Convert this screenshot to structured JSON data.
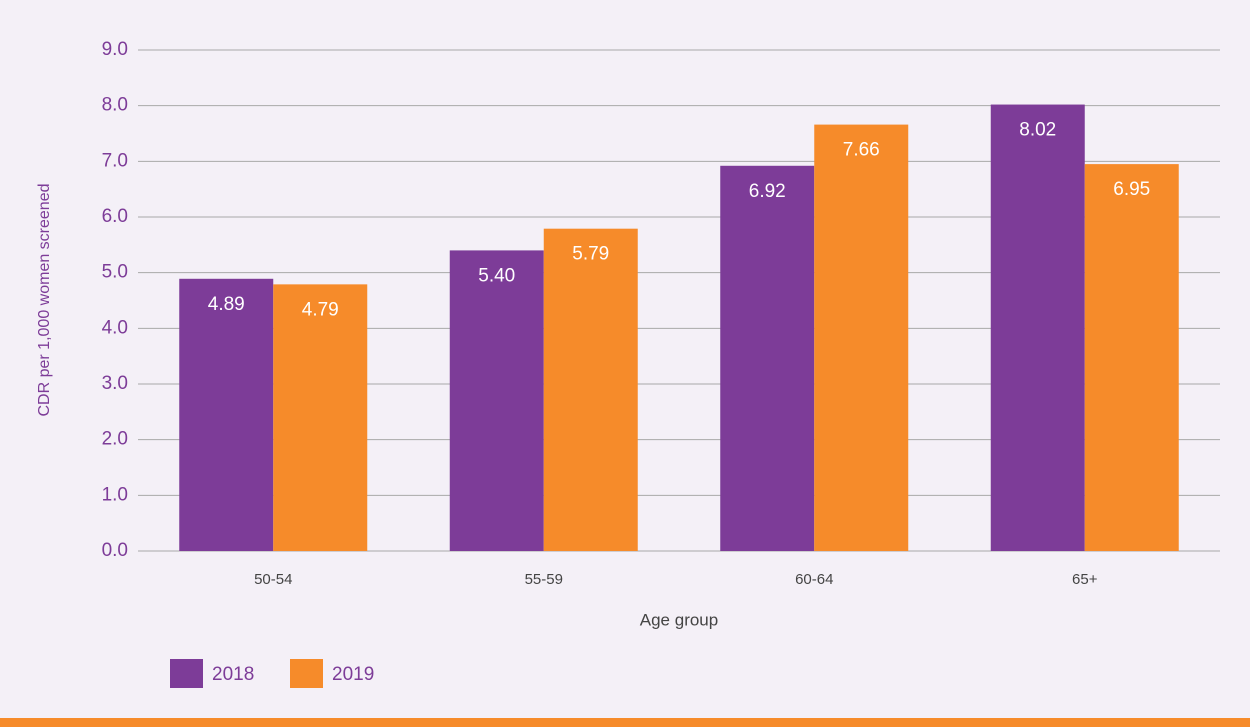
{
  "chart_data": {
    "type": "bar",
    "y_label": "CDR per 1,000 women screened",
    "x_label": "Age group",
    "categories": [
      "50-54",
      "55-59",
      "60-64",
      "65+"
    ],
    "series": [
      {
        "name": "2018",
        "color": "#7d3c98",
        "values": [
          4.89,
          5.4,
          6.92,
          8.02
        ],
        "value_labels": [
          "4.89",
          "5.40",
          "6.92",
          "8.02"
        ]
      },
      {
        "name": "2019",
        "color": "#f68b2a",
        "values": [
          4.79,
          5.79,
          7.66,
          6.95
        ],
        "value_labels": [
          "4.79",
          "5.79",
          "7.66",
          "6.95"
        ]
      }
    ],
    "ylim": [
      0,
      9
    ],
    "yticks": [
      {
        "value": 0,
        "label": "0.0"
      },
      {
        "value": 1,
        "label": "1.0"
      },
      {
        "value": 2,
        "label": "2.0"
      },
      {
        "value": 3,
        "label": "3.0"
      },
      {
        "value": 4,
        "label": "4.0"
      },
      {
        "value": 5,
        "label": "5.0"
      },
      {
        "value": 6,
        "label": "6.0"
      },
      {
        "value": 7,
        "label": "7.0"
      },
      {
        "value": 8,
        "label": "8.0"
      },
      {
        "value": 9,
        "label": "9.0"
      }
    ],
    "grid": true,
    "legend": "bottom-left"
  }
}
